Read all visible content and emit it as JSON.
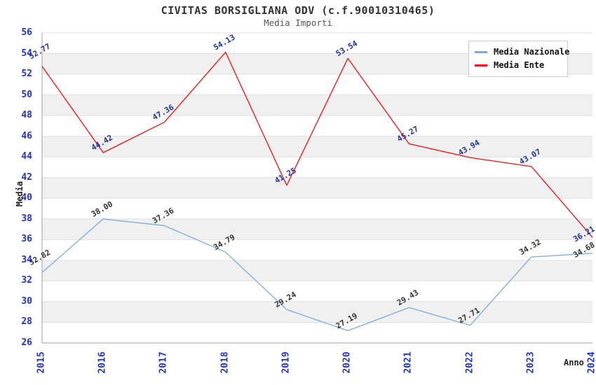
{
  "chart_data": {
    "type": "line",
    "title": "CIVITAS BORSIGLIANA ODV (c.f.90010310465)",
    "subtitle": "Media Importi",
    "xlabel": "Anno",
    "ylabel": "Media",
    "categories": [
      "2015",
      "2016",
      "2017",
      "2018",
      "2019",
      "2020",
      "2021",
      "2022",
      "2023",
      "2024"
    ],
    "series": [
      {
        "name": "Media Nazionale",
        "color": "#7aabde",
        "label_color": "#333333",
        "values": [
          32.82,
          38.0,
          37.36,
          34.79,
          29.24,
          27.19,
          29.43,
          27.71,
          34.32,
          34.68
        ],
        "labels": [
          "32.82",
          "38.00",
          "37.36",
          "34.79",
          "29.24",
          "27.19",
          "29.43",
          "27.71",
          "34.32",
          "34.68"
        ]
      },
      {
        "name": "Media Ente",
        "color": "#ee1111",
        "label_color": "#223399",
        "values": [
          52.77,
          44.42,
          47.36,
          54.13,
          41.25,
          53.54,
          45.27,
          43.94,
          43.07,
          36.21
        ],
        "labels": [
          "52.77",
          "44.42",
          "47.36",
          "54.13",
          "41.25",
          "53.54",
          "45.27",
          "43.94",
          "43.07",
          "36.21"
        ]
      }
    ],
    "ylim": [
      26,
      56
    ],
    "ytick_step": 2,
    "grid": "horizontal-bands",
    "band_color": "#f0f0f0",
    "gridline_color": "#e0e0e0",
    "axis_color": "#a0a0a0",
    "tick_label_color": "#2233cc",
    "legend_position": "top-right"
  }
}
